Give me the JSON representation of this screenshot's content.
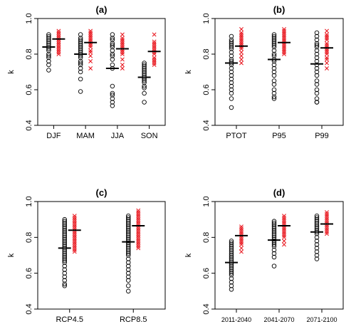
{
  "colors": {
    "series_a": "#000000",
    "series_b": "#e8141c",
    "axis": "#000000"
  },
  "chart_data": [
    {
      "type": "scatter",
      "panel": "(a)",
      "title": "(a)",
      "ylabel": "k",
      "ylim": [
        0.4,
        1.0
      ],
      "yticks": [
        "0.4",
        "0.6",
        "0.8",
        "1.0"
      ],
      "categories": [
        "DJF",
        "MAM",
        "JJA",
        "SON"
      ],
      "small_ticks": false,
      "series": [
        {
          "marker": "circle",
          "color": "#000000",
          "points": [
            [
              0.91,
              0.9,
              0.89,
              0.88,
              0.87,
              0.86,
              0.85,
              0.84,
              0.83,
              0.82,
              0.8,
              0.79,
              0.78,
              0.76,
              0.74,
              0.71
            ],
            [
              0.91,
              0.89,
              0.88,
              0.87,
              0.86,
              0.85,
              0.84,
              0.83,
              0.82,
              0.81,
              0.8,
              0.79,
              0.78,
              0.76,
              0.75,
              0.74,
              0.72,
              0.7,
              0.66,
              0.59
            ],
            [
              0.91,
              0.89,
              0.88,
              0.86,
              0.85,
              0.84,
              0.82,
              0.8,
              0.79,
              0.77,
              0.74,
              0.72,
              0.62,
              0.58,
              0.57,
              0.55,
              0.53,
              0.51
            ],
            [
              0.75,
              0.74,
              0.73,
              0.72,
              0.71,
              0.7,
              0.69,
              0.68,
              0.67,
              0.66,
              0.65,
              0.64,
              0.62,
              0.61,
              0.58,
              0.53
            ]
          ],
          "means": [
            0.84,
            0.8,
            0.72,
            0.67
          ]
        },
        {
          "marker": "cross",
          "color": "#e8141c",
          "points": [
            [
              0.93,
              0.92,
              0.91,
              0.9,
              0.89,
              0.88,
              0.87,
              0.86,
              0.85,
              0.84,
              0.83,
              0.82,
              0.81,
              0.8
            ],
            [
              0.93,
              0.92,
              0.91,
              0.9,
              0.89,
              0.88,
              0.87,
              0.86,
              0.85,
              0.84,
              0.82,
              0.81,
              0.79,
              0.76,
              0.72
            ],
            [
              0.91,
              0.89,
              0.88,
              0.87,
              0.86,
              0.85,
              0.84,
              0.83,
              0.82,
              0.81,
              0.8,
              0.77,
              0.74,
              0.72
            ],
            [
              0.91,
              0.87,
              0.86,
              0.85,
              0.84,
              0.83,
              0.82,
              0.81,
              0.8,
              0.78,
              0.77,
              0.76,
              0.75,
              0.74
            ]
          ],
          "means": [
            0.885,
            0.865,
            0.83,
            0.815
          ]
        }
      ]
    },
    {
      "type": "scatter",
      "panel": "(b)",
      "title": "(b)",
      "ylabel": "k",
      "ylim": [
        0.4,
        1.0
      ],
      "yticks": [
        "0.4",
        "0.6",
        "0.8",
        "1.0"
      ],
      "categories": [
        "PTOT",
        "P95",
        "P99"
      ],
      "small_ticks": false,
      "series": [
        {
          "marker": "circle",
          "color": "#000000",
          "points": [
            [
              0.9,
              0.88,
              0.87,
              0.86,
              0.85,
              0.84,
              0.83,
              0.81,
              0.79,
              0.77,
              0.76,
              0.75,
              0.74,
              0.72,
              0.7,
              0.68,
              0.66,
              0.64,
              0.62,
              0.6,
              0.58,
              0.55,
              0.5
            ],
            [
              0.91,
              0.9,
              0.89,
              0.88,
              0.87,
              0.86,
              0.85,
              0.84,
              0.82,
              0.8,
              0.79,
              0.77,
              0.76,
              0.74,
              0.72,
              0.7,
              0.68,
              0.65,
              0.63,
              0.6,
              0.58,
              0.56,
              0.55
            ],
            [
              0.92,
              0.9,
              0.88,
              0.86,
              0.85,
              0.84,
              0.82,
              0.8,
              0.78,
              0.76,
              0.74,
              0.72,
              0.7,
              0.68,
              0.65,
              0.63,
              0.6,
              0.58,
              0.55,
              0.53,
              0.53
            ]
          ],
          "means": [
            0.75,
            0.77,
            0.745
          ]
        },
        {
          "marker": "cross",
          "color": "#e8141c",
          "points": [
            [
              0.94,
              0.92,
              0.91,
              0.9,
              0.89,
              0.88,
              0.87,
              0.86,
              0.85,
              0.84,
              0.83,
              0.81,
              0.79,
              0.77,
              0.75
            ],
            [
              0.94,
              0.93,
              0.92,
              0.91,
              0.9,
              0.89,
              0.88,
              0.87,
              0.86,
              0.85,
              0.84,
              0.83,
              0.82,
              0.81,
              0.8
            ],
            [
              0.93,
              0.91,
              0.9,
              0.89,
              0.88,
              0.86,
              0.85,
              0.84,
              0.83,
              0.82,
              0.81,
              0.8,
              0.78,
              0.77,
              0.75,
              0.72
            ]
          ],
          "means": [
            0.845,
            0.865,
            0.835
          ]
        }
      ]
    },
    {
      "type": "scatter",
      "panel": "(c)",
      "title": "(c)",
      "ylabel": "k",
      "ylim": [
        0.4,
        1.0
      ],
      "yticks": [
        "0.4",
        "0.6",
        "0.8",
        "1.0"
      ],
      "categories": [
        "RCP4.5",
        "RCP8.5"
      ],
      "small_ticks": false,
      "series": [
        {
          "marker": "circle",
          "color": "#000000",
          "points": [
            [
              0.9,
              0.89,
              0.88,
              0.87,
              0.86,
              0.85,
              0.84,
              0.83,
              0.82,
              0.81,
              0.8,
              0.79,
              0.78,
              0.77,
              0.76,
              0.75,
              0.74,
              0.73,
              0.72,
              0.71,
              0.7,
              0.69,
              0.68,
              0.67,
              0.66,
              0.64,
              0.62,
              0.6,
              0.58,
              0.56,
              0.54,
              0.53
            ],
            [
              0.92,
              0.91,
              0.9,
              0.89,
              0.88,
              0.87,
              0.86,
              0.85,
              0.84,
              0.83,
              0.82,
              0.81,
              0.8,
              0.79,
              0.78,
              0.77,
              0.76,
              0.75,
              0.74,
              0.73,
              0.72,
              0.71,
              0.7,
              0.68,
              0.66,
              0.64,
              0.62,
              0.6,
              0.58,
              0.56,
              0.53,
              0.5
            ]
          ],
          "means": [
            0.74,
            0.775
          ]
        },
        {
          "marker": "cross",
          "color": "#e8141c",
          "points": [
            [
              0.92,
              0.91,
              0.9,
              0.89,
              0.88,
              0.87,
              0.86,
              0.85,
              0.84,
              0.83,
              0.82,
              0.81,
              0.8,
              0.79,
              0.78,
              0.77,
              0.76,
              0.75,
              0.74,
              0.73,
              0.72
            ],
            [
              0.95,
              0.94,
              0.93,
              0.92,
              0.91,
              0.9,
              0.89,
              0.88,
              0.87,
              0.86,
              0.85,
              0.84,
              0.83,
              0.82,
              0.81,
              0.8,
              0.79,
              0.78,
              0.77,
              0.76,
              0.75,
              0.74
            ]
          ],
          "means": [
            0.84,
            0.865
          ]
        }
      ]
    },
    {
      "type": "scatter",
      "panel": "(d)",
      "title": "(d)",
      "ylabel": "k",
      "ylim": [
        0.4,
        1.0
      ],
      "yticks": [
        "0.4",
        "0.6",
        "0.8",
        "1.0"
      ],
      "categories": [
        "2011-2040",
        "2041-2070",
        "2071-2100"
      ],
      "small_ticks": true,
      "series": [
        {
          "marker": "circle",
          "color": "#000000",
          "points": [
            [
              0.78,
              0.77,
              0.76,
              0.75,
              0.74,
              0.73,
              0.72,
              0.71,
              0.7,
              0.69,
              0.68,
              0.67,
              0.66,
              0.65,
              0.64,
              0.63,
              0.62,
              0.61,
              0.6,
              0.59,
              0.57,
              0.55,
              0.53,
              0.51
            ],
            [
              0.89,
              0.88,
              0.87,
              0.86,
              0.85,
              0.84,
              0.83,
              0.82,
              0.81,
              0.8,
              0.79,
              0.78,
              0.77,
              0.76,
              0.75,
              0.73,
              0.71,
              0.69,
              0.64
            ],
            [
              0.92,
              0.91,
              0.9,
              0.89,
              0.88,
              0.87,
              0.86,
              0.85,
              0.84,
              0.83,
              0.82,
              0.8,
              0.78,
              0.76,
              0.74,
              0.72,
              0.7,
              0.68
            ]
          ],
          "means": [
            0.66,
            0.785,
            0.83
          ]
        },
        {
          "marker": "cross",
          "color": "#e8141c",
          "points": [
            [
              0.86,
              0.85,
              0.84,
              0.83,
              0.82,
              0.81,
              0.8,
              0.79,
              0.78,
              0.77,
              0.76,
              0.74,
              0.72
            ],
            [
              0.92,
              0.91,
              0.9,
              0.89,
              0.88,
              0.87,
              0.86,
              0.85,
              0.84,
              0.83,
              0.82,
              0.81,
              0.8,
              0.78,
              0.76
            ],
            [
              0.94,
              0.93,
              0.92,
              0.91,
              0.9,
              0.89,
              0.88,
              0.87,
              0.86,
              0.85,
              0.84,
              0.83,
              0.82
            ]
          ],
          "means": [
            0.81,
            0.865,
            0.875
          ]
        }
      ]
    }
  ]
}
